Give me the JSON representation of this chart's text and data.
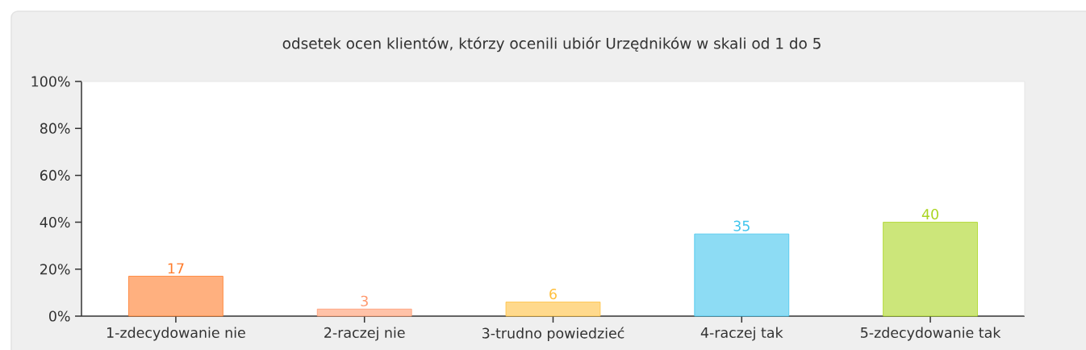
{
  "chart_data": {
    "type": "bar",
    "title": "odsetek ocen klientów, którzy ocenili ubiór Urzędników w skali od 1 do 5",
    "categories": [
      "1-zdecydowanie nie",
      "2-raczej nie",
      "3-trudno powiedzieć",
      "4-raczej tak",
      "5-zdecydowanie tak"
    ],
    "values": [
      17,
      3,
      6,
      35,
      40
    ],
    "colors": [
      "#ffb07f",
      "#ffc2a8",
      "#ffd98c",
      "#8ddcf4",
      "#cce67a"
    ],
    "ylim": [
      0,
      100
    ],
    "yticks": [
      {
        "value": 0,
        "label": "0%"
      },
      {
        "value": 20,
        "label": "20%"
      },
      {
        "value": 40,
        "label": "40%"
      },
      {
        "value": 60,
        "label": "60%"
      },
      {
        "value": 80,
        "label": "80%"
      },
      {
        "value": 100,
        "label": "100%"
      }
    ],
    "data_labels": true
  }
}
